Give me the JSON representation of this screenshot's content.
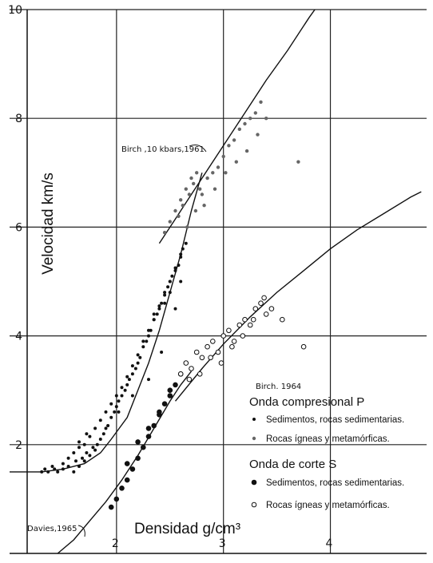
{
  "chart_data": {
    "type": "scatter",
    "xlabel": "Densidad g/cm³",
    "ylabel": "Velocidad  km/s",
    "xlim": [
      1.0,
      4.9
    ],
    "ylim": [
      0.0,
      10.0
    ],
    "x_ticks": [
      "2",
      "3",
      "4"
    ],
    "y_ticks": [
      "10",
      "8",
      "6",
      "4",
      "2"
    ],
    "grid": true,
    "annotations": {
      "birch_1961": "Birch ,10 kbars,1961",
      "birch_1964": "Birch. 1964",
      "davies_1965": "Davies,1965"
    },
    "legend": {
      "position": "bottom-right",
      "groups": [
        {
          "heading": "Onda compresional P",
          "items": [
            {
              "label": "Sedimentos, rocas sedimentarias.",
              "marker": "small-filled"
            },
            {
              "label": "Rocas ígneas y metamórficas.",
              "marker": "small-gray"
            }
          ]
        },
        {
          "heading": "Onda de corte S",
          "items": [
            {
              "label": "Sedimentos, rocas sedimentarias.",
              "marker": "large-filled"
            },
            {
              "label": "Rocas ígneas y metamórficas.",
              "marker": "open-circle"
            }
          ]
        }
      ]
    },
    "series": [
      {
        "name": "Birch ,10 kbars,1961",
        "kind": "line",
        "x": [
          2.4,
          2.55,
          2.7,
          2.85,
          3.0,
          3.2,
          3.4,
          3.6,
          3.8,
          4.0
        ],
        "y": [
          5.7,
          6.15,
          6.6,
          7.05,
          7.5,
          8.1,
          8.7,
          9.25,
          9.85,
          10.4
        ]
      },
      {
        "name": "Birch. 1964",
        "kind": "line",
        "x": [
          2.55,
          2.8,
          3.0,
          3.25,
          3.5,
          3.75,
          4.0,
          4.25,
          4.5,
          4.75,
          4.85
        ],
        "y": [
          2.8,
          3.4,
          3.85,
          4.35,
          4.8,
          5.2,
          5.6,
          5.95,
          6.25,
          6.55,
          6.65
        ]
      },
      {
        "name": "P fit",
        "kind": "line",
        "x": [
          1.0,
          1.3,
          1.5,
          1.7,
          1.85,
          1.95,
          2.1,
          2.2,
          2.3,
          2.4,
          2.5,
          2.6,
          2.7,
          2.8
        ],
        "y": [
          1.5,
          1.5,
          1.55,
          1.65,
          1.85,
          2.1,
          2.5,
          3.0,
          3.5,
          4.1,
          4.8,
          5.5,
          6.3,
          7.0
        ]
      },
      {
        "name": "Davies,1965",
        "kind": "line",
        "x": [
          1.45,
          1.6,
          1.75,
          1.9,
          2.05,
          2.2,
          2.35,
          2.5,
          2.6,
          2.7
        ],
        "y": [
          0.0,
          0.25,
          0.6,
          0.95,
          1.35,
          1.8,
          2.3,
          2.8,
          3.1,
          3.35
        ]
      }
    ],
    "point_groups": [
      {
        "marker": "small-filled",
        "x": [
          1.3,
          1.33,
          1.36,
          1.4,
          1.42,
          1.45,
          1.5,
          1.55,
          1.6,
          1.62,
          1.65,
          1.68,
          1.7,
          1.72,
          1.75,
          1.78,
          1.8,
          1.82,
          1.85,
          1.88,
          1.9,
          1.92,
          1.95,
          1.98,
          2.0,
          2.02,
          2.05,
          2.08,
          2.1,
          2.12,
          2.15,
          2.18,
          2.2,
          2.22,
          2.25,
          2.28,
          2.3,
          2.32,
          2.35,
          2.38,
          2.4,
          2.42,
          2.45,
          2.48,
          2.5,
          2.52,
          2.55,
          2.58,
          2.6,
          2.62,
          2.65,
          1.5,
          1.55,
          1.6,
          1.65,
          1.7,
          1.75,
          1.8,
          1.85,
          1.9,
          1.95,
          2.0,
          2.05,
          2.1,
          2.15,
          2.2,
          2.25,
          2.3,
          2.35,
          2.4,
          2.45,
          2.5,
          2.55,
          2.6,
          1.65,
          1.72,
          2.02,
          2.15,
          2.3,
          2.42,
          2.55,
          2.6,
          2.35,
          2.45,
          2.5
        ],
        "y": [
          1.5,
          1.55,
          1.5,
          1.6,
          1.55,
          1.5,
          1.55,
          1.6,
          1.5,
          1.7,
          1.6,
          1.75,
          1.7,
          1.85,
          1.8,
          1.95,
          1.9,
          2.0,
          2.1,
          2.2,
          2.3,
          2.35,
          2.5,
          2.6,
          2.7,
          2.8,
          2.9,
          3.0,
          3.1,
          3.2,
          3.3,
          3.4,
          3.5,
          3.6,
          3.8,
          3.9,
          4.0,
          4.1,
          4.3,
          4.4,
          4.5,
          4.6,
          4.8,
          4.9,
          5.0,
          5.1,
          5.2,
          5.3,
          5.5,
          5.6,
          5.7,
          1.65,
          1.75,
          1.85,
          1.95,
          2.0,
          2.15,
          2.3,
          2.45,
          2.6,
          2.75,
          2.9,
          3.05,
          3.25,
          3.45,
          3.65,
          3.9,
          4.1,
          4.3,
          4.55,
          4.75,
          5.0,
          5.25,
          5.45,
          2.05,
          2.2,
          2.6,
          2.9,
          3.2,
          3.7,
          4.5,
          5.0,
          4.4,
          4.6,
          4.8
        ]
      },
      {
        "marker": "small-gray",
        "x": [
          2.45,
          2.5,
          2.55,
          2.6,
          2.62,
          2.65,
          2.68,
          2.7,
          2.72,
          2.75,
          2.78,
          2.8,
          2.85,
          2.9,
          2.95,
          3.0,
          3.05,
          3.1,
          3.15,
          3.2,
          3.25,
          3.3,
          3.35,
          3.4,
          2.58,
          2.66,
          2.74,
          2.82,
          2.92,
          3.02,
          3.12,
          3.22,
          3.32,
          3.7
        ],
        "y": [
          5.9,
          6.1,
          6.3,
          6.5,
          6.4,
          6.7,
          6.6,
          6.9,
          6.8,
          7.0,
          6.7,
          6.6,
          6.9,
          7.0,
          7.1,
          7.3,
          7.5,
          7.6,
          7.8,
          7.9,
          8.0,
          8.1,
          8.3,
          8.0,
          6.2,
          6.0,
          6.3,
          6.4,
          6.7,
          7.0,
          7.2,
          7.4,
          7.7,
          7.2
        ]
      },
      {
        "marker": "large-filled",
        "x": [
          1.95,
          2.0,
          2.05,
          2.1,
          2.15,
          2.2,
          2.25,
          2.3,
          2.35,
          2.4,
          2.45,
          2.5,
          2.55,
          2.6,
          2.2,
          2.3,
          2.4,
          2.5,
          2.1
        ],
        "y": [
          0.85,
          1.0,
          1.2,
          1.35,
          1.55,
          1.75,
          1.95,
          2.15,
          2.35,
          2.55,
          2.75,
          2.9,
          3.1,
          3.3,
          2.05,
          2.3,
          2.6,
          3.0,
          1.65
        ]
      },
      {
        "marker": "open-circle",
        "x": [
          2.6,
          2.65,
          2.7,
          2.75,
          2.8,
          2.85,
          2.9,
          2.95,
          3.0,
          3.05,
          3.1,
          3.15,
          3.2,
          3.25,
          3.3,
          3.35,
          3.4,
          3.45,
          2.68,
          2.78,
          2.88,
          2.98,
          3.08,
          3.18,
          3.28,
          3.38,
          3.75,
          3.55
        ],
        "y": [
          3.3,
          3.5,
          3.4,
          3.7,
          3.6,
          3.8,
          3.9,
          3.7,
          4.0,
          4.1,
          3.9,
          4.2,
          4.3,
          4.2,
          4.5,
          4.6,
          4.4,
          4.5,
          3.2,
          3.3,
          3.6,
          3.5,
          3.8,
          4.0,
          4.3,
          4.7,
          3.8,
          4.3
        ]
      }
    ]
  }
}
